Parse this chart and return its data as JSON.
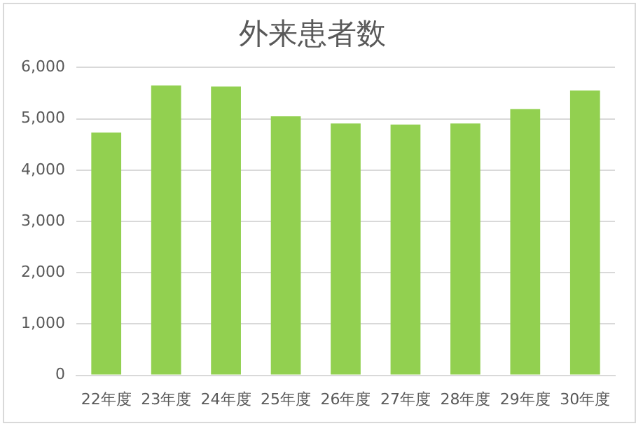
{
  "chart_data": {
    "type": "bar",
    "title": "外来患者数",
    "categories": [
      "22年度",
      "23年度",
      "24年度",
      "25年度",
      "26年度",
      "27年度",
      "28年度",
      "29年度",
      "30年度"
    ],
    "values": [
      4730,
      5650,
      5630,
      5050,
      4910,
      4890,
      4910,
      5190,
      5550
    ],
    "color": "#92d050",
    "ylim": [
      0,
      6000
    ],
    "yticks": [
      {
        "value": 0,
        "label": "0"
      },
      {
        "value": 1000,
        "label": "1,000"
      },
      {
        "value": 2000,
        "label": "2,000"
      },
      {
        "value": 3000,
        "label": "3,000"
      },
      {
        "value": 4000,
        "label": "4,000"
      },
      {
        "value": 5000,
        "label": "5,000"
      },
      {
        "value": 6000,
        "label": "6,000"
      }
    ],
    "grid": "y"
  }
}
